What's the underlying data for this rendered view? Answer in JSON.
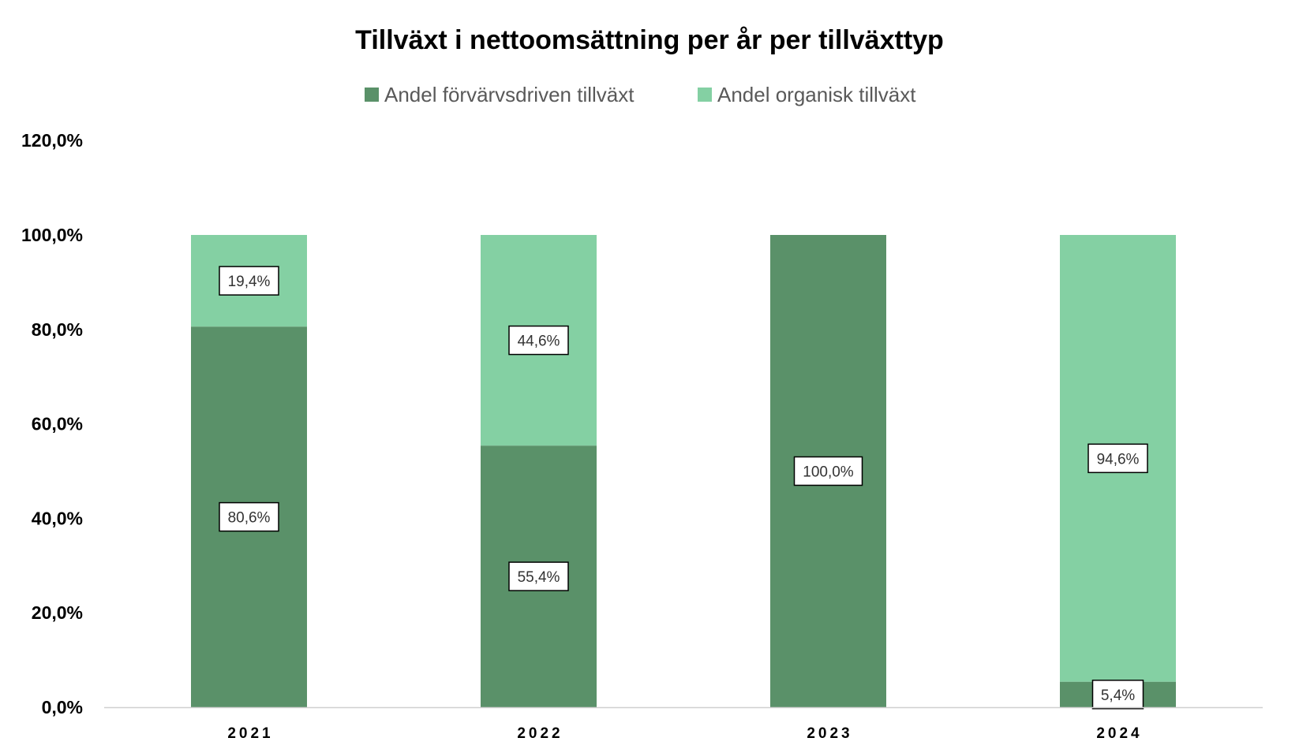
{
  "chart_data": {
    "type": "bar",
    "stacked": true,
    "title": "Tillväxt i nettoomsättning per år per tillväxttyp",
    "categories": [
      "2021",
      "2022",
      "2023",
      "2024"
    ],
    "series": [
      {
        "name": "Andel förvärvsdriven tillväxt",
        "color": "#5a9169",
        "values": [
          80.6,
          55.4,
          100.0,
          5.4
        ],
        "labels": [
          "80,6%",
          "55,4%",
          "100,0%",
          "5,4%"
        ]
      },
      {
        "name": "Andel organisk tillväxt",
        "color": "#84d0a3",
        "values": [
          19.4,
          44.6,
          0.0,
          94.6
        ],
        "labels": [
          "19,4%",
          "44,6%",
          "",
          "94,6%"
        ]
      }
    ],
    "ylim": [
      0,
      120
    ],
    "yticks": [
      0,
      20,
      40,
      60,
      80,
      100,
      120
    ],
    "ytick_labels": [
      "0,0%",
      "20,0%",
      "40,0%",
      "60,0%",
      "80,0%",
      "100,0%",
      "120,0%"
    ],
    "grid": false,
    "legend_position": "top"
  }
}
